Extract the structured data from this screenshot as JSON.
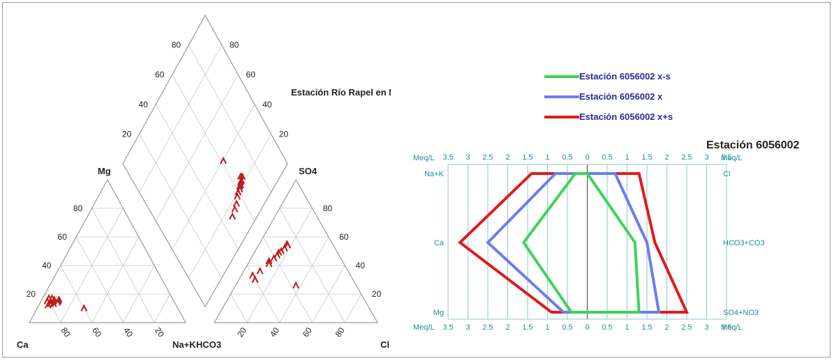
{
  "chart_data": [
    {
      "type": "scatter",
      "name": "piper",
      "title": "Estación Río Rapel en Navidad",
      "corner_labels": {
        "ca": "Ca",
        "na_k": "Na+K",
        "mg": "Mg",
        "hco3": "HCO3",
        "cl": "Cl",
        "so4": "SO4"
      },
      "cation_ticks": [
        "80",
        "60",
        "40",
        "20"
      ],
      "anion_ticks": [
        "20",
        "40",
        "60",
        "80"
      ],
      "side_ticks": [
        "80",
        "60",
        "40",
        "20"
      ],
      "diamond_left_ticks": [
        "80",
        "60",
        "40",
        "20"
      ],
      "diamond_right_ticks": [
        "80",
        "60",
        "40",
        "20"
      ],
      "marker_color": "#c0191c",
      "grid_color": "#c8c8c8",
      "cations": [
        {
          "ca": 82,
          "mg": 12
        },
        {
          "ca": 80,
          "mg": 13
        },
        {
          "ca": 79,
          "mg": 14
        },
        {
          "ca": 77,
          "mg": 15
        },
        {
          "ca": 76,
          "mg": 16
        },
        {
          "ca": 78,
          "mg": 13
        },
        {
          "ca": 75,
          "mg": 14
        },
        {
          "ca": 74,
          "mg": 15
        },
        {
          "ca": 81,
          "mg": 15
        },
        {
          "ca": 77,
          "mg": 17
        },
        {
          "ca": 73,
          "mg": 16
        },
        {
          "ca": 79,
          "mg": 17
        },
        {
          "ca": 60,
          "mg": 10
        }
      ],
      "anions": [
        {
          "so4": 55,
          "cl": 17
        },
        {
          "so4": 54,
          "cl": 18
        },
        {
          "so4": 52,
          "cl": 17
        },
        {
          "so4": 50,
          "cl": 16
        },
        {
          "so4": 49,
          "cl": 15
        },
        {
          "so4": 47,
          "cl": 15
        },
        {
          "so4": 45,
          "cl": 14
        },
        {
          "so4": 43,
          "cl": 12
        },
        {
          "so4": 41,
          "cl": 13
        },
        {
          "so4": 36,
          "cl": 10
        },
        {
          "so4": 33,
          "cl": 7
        },
        {
          "so4": 30,
          "cl": 10
        },
        {
          "so4": 26,
          "cl": 37
        }
      ],
      "diamond": [
        {
          "cl_so4": 67,
          "na_k": 24
        },
        {
          "cl_so4": 68,
          "na_k": 23
        },
        {
          "cl_so4": 66,
          "na_k": 22
        },
        {
          "cl_so4": 65,
          "na_k": 22
        },
        {
          "cl_so4": 64,
          "na_k": 21
        },
        {
          "cl_so4": 63,
          "na_k": 21
        },
        {
          "cl_so4": 62,
          "na_k": 20
        },
        {
          "cl_so4": 60,
          "na_k": 20
        },
        {
          "cl_so4": 58,
          "na_k": 19
        },
        {
          "cl_so4": 55,
          "na_k": 17
        },
        {
          "cl_so4": 52,
          "na_k": 16
        },
        {
          "cl_so4": 48,
          "na_k": 15
        },
        {
          "cl_so4": 62,
          "na_k": 40
        }
      ]
    },
    {
      "type": "line",
      "name": "stiff",
      "title": "Estación 6056002",
      "xlim": [
        -3.5,
        3.5
      ],
      "x_ticks": [
        "3.5",
        "3",
        "2.5",
        "2",
        "1.5",
        "1",
        "0.5",
        "0",
        "0.5",
        "1",
        "1.5",
        "2",
        "2.5",
        "3",
        "3.5"
      ],
      "unit_label": "Meq/L",
      "left_labels": [
        "Na+K",
        "Ca",
        "Mg"
      ],
      "right_labels": [
        "Cl",
        "HCO3+CO3",
        "SO4+NO3"
      ],
      "axis_color": "#1f8d9c",
      "series": [
        {
          "name": "Estación 6056002 x-s",
          "color": "#3fd35a",
          "left": [
            0.3,
            1.6,
            0.4
          ],
          "right": [
            0.0,
            1.2,
            1.3
          ]
        },
        {
          "name": "Estación 6056002 x",
          "color": "#6b7cf2",
          "left": [
            0.8,
            2.5,
            0.6
          ],
          "right": [
            0.7,
            1.5,
            1.8
          ]
        },
        {
          "name": "Estación 6056002 x+s",
          "color": "#e01a1a",
          "left": [
            1.4,
            3.2,
            0.9
          ],
          "right": [
            1.3,
            1.7,
            2.5
          ]
        }
      ]
    }
  ]
}
